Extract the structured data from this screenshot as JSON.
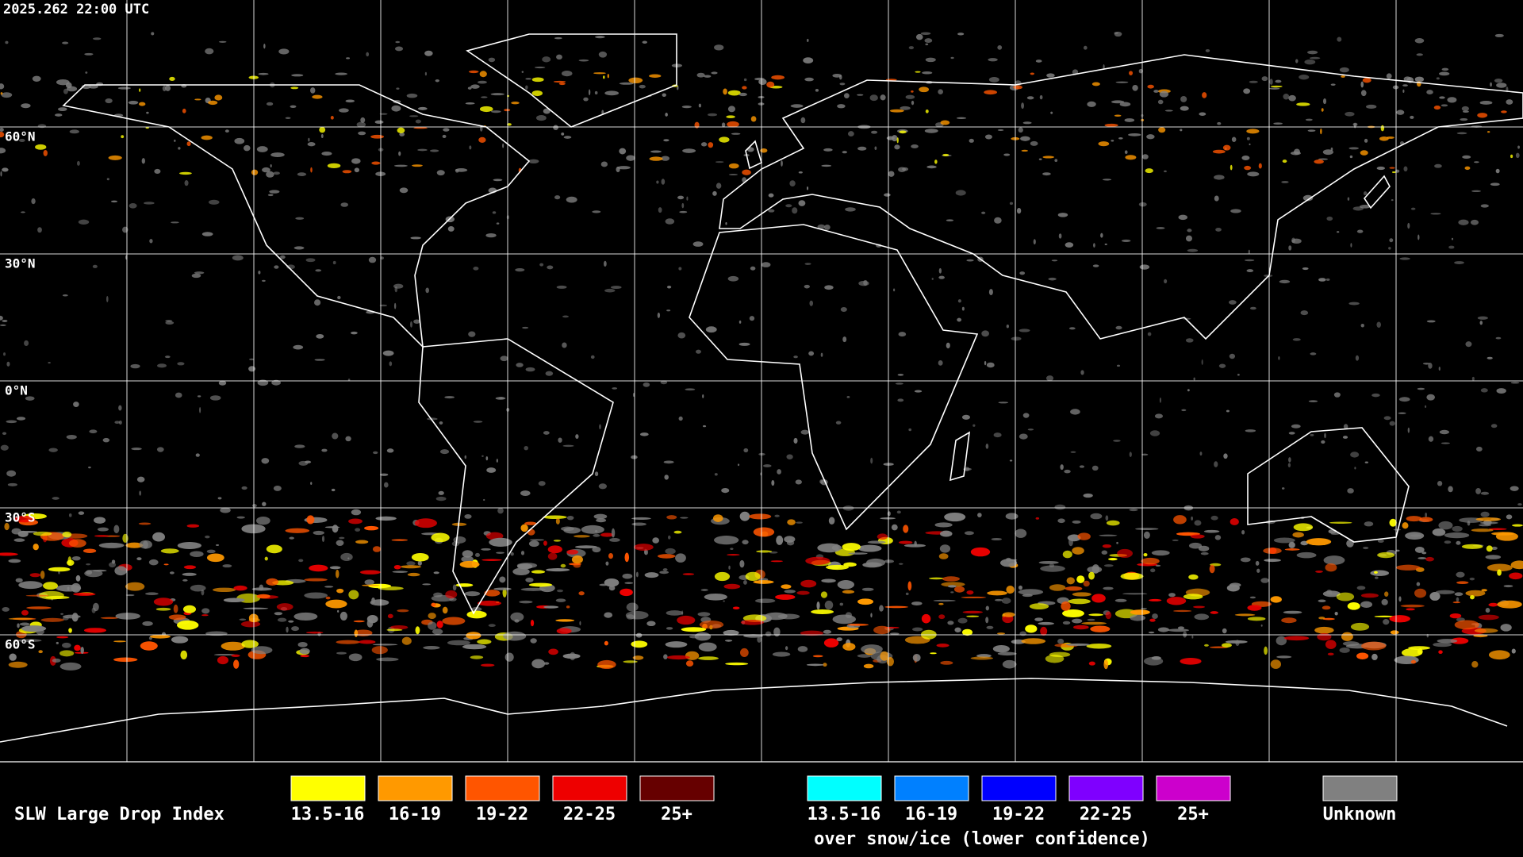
{
  "timestamp": "2025.262 22:00 UTC",
  "lat_labels": [
    "60°N",
    "30°N",
    "0°N",
    "30°S",
    "60°S"
  ],
  "legend": {
    "title": "SLW Large Drop Index",
    "items": [
      {
        "label": "13.5-16",
        "color": "#ffff00"
      },
      {
        "label": "16-19",
        "color": "#ff9900"
      },
      {
        "label": "19-22",
        "color": "#ff5500"
      },
      {
        "label": "22-25",
        "color": "#ee0000"
      },
      {
        "label": "25+",
        "color": "#660000"
      }
    ],
    "snow_ice_items": [
      {
        "label": "13.5-16",
        "color": "#00ffff"
      },
      {
        "label": "16-19",
        "color": "#0080ff"
      },
      {
        "label": "19-22",
        "color": "#0000ff"
      },
      {
        "label": "22-25",
        "color": "#7f00ff"
      },
      {
        "label": "25+",
        "color": "#cc00cc"
      }
    ],
    "snow_ice_caption": "over snow/ice (lower confidence)",
    "unknown": {
      "label": "Unknown",
      "color": "#808080"
    }
  }
}
